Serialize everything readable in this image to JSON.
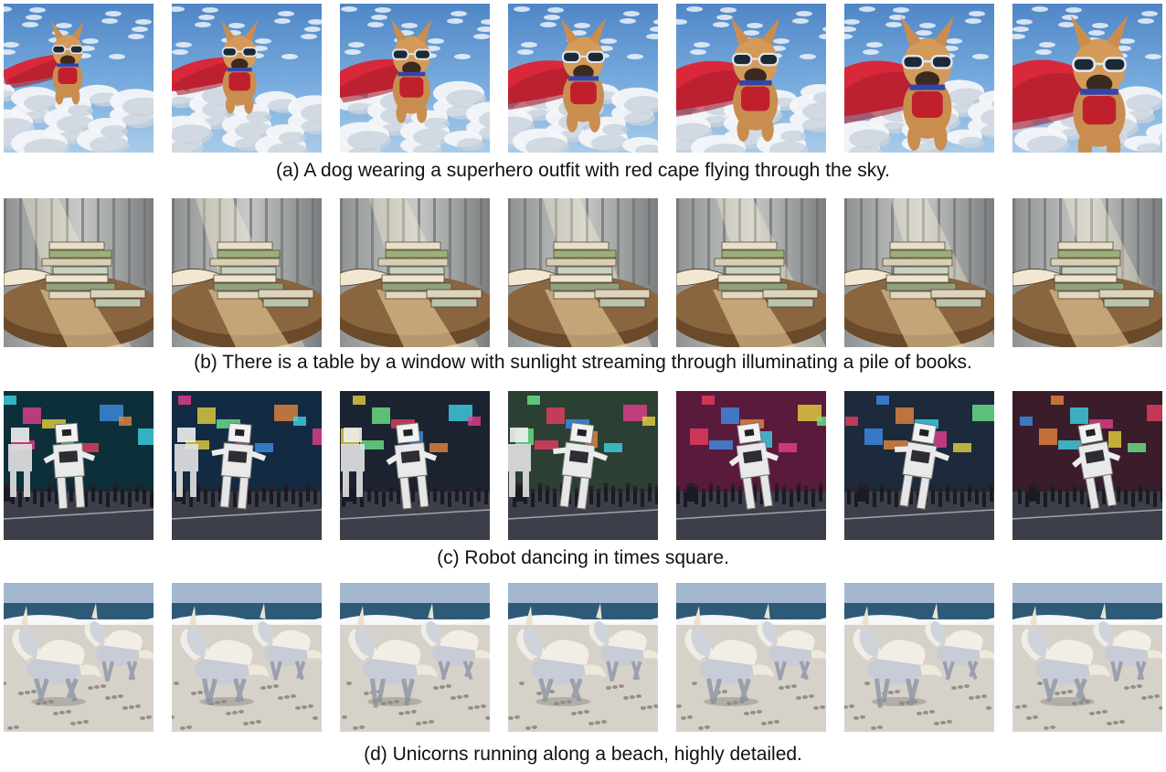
{
  "figure": {
    "rows": [
      {
        "id": "dog",
        "caption": "(a) A dog wearing a superhero outfit with red cape flying through the sky.",
        "frame_count": 7,
        "scene": "dog"
      },
      {
        "id": "books",
        "caption": "(b) There is a table by a window with sunlight streaming through illuminating a pile of books.",
        "frame_count": 7,
        "scene": "books"
      },
      {
        "id": "robot",
        "caption": "(c) Robot dancing in times square.",
        "frame_count": 7,
        "scene": "robot"
      },
      {
        "id": "unicorns",
        "caption": "(d) Unicorns running along a beach, highly detailed.",
        "frame_count": 7,
        "scene": "unicorns"
      }
    ]
  }
}
